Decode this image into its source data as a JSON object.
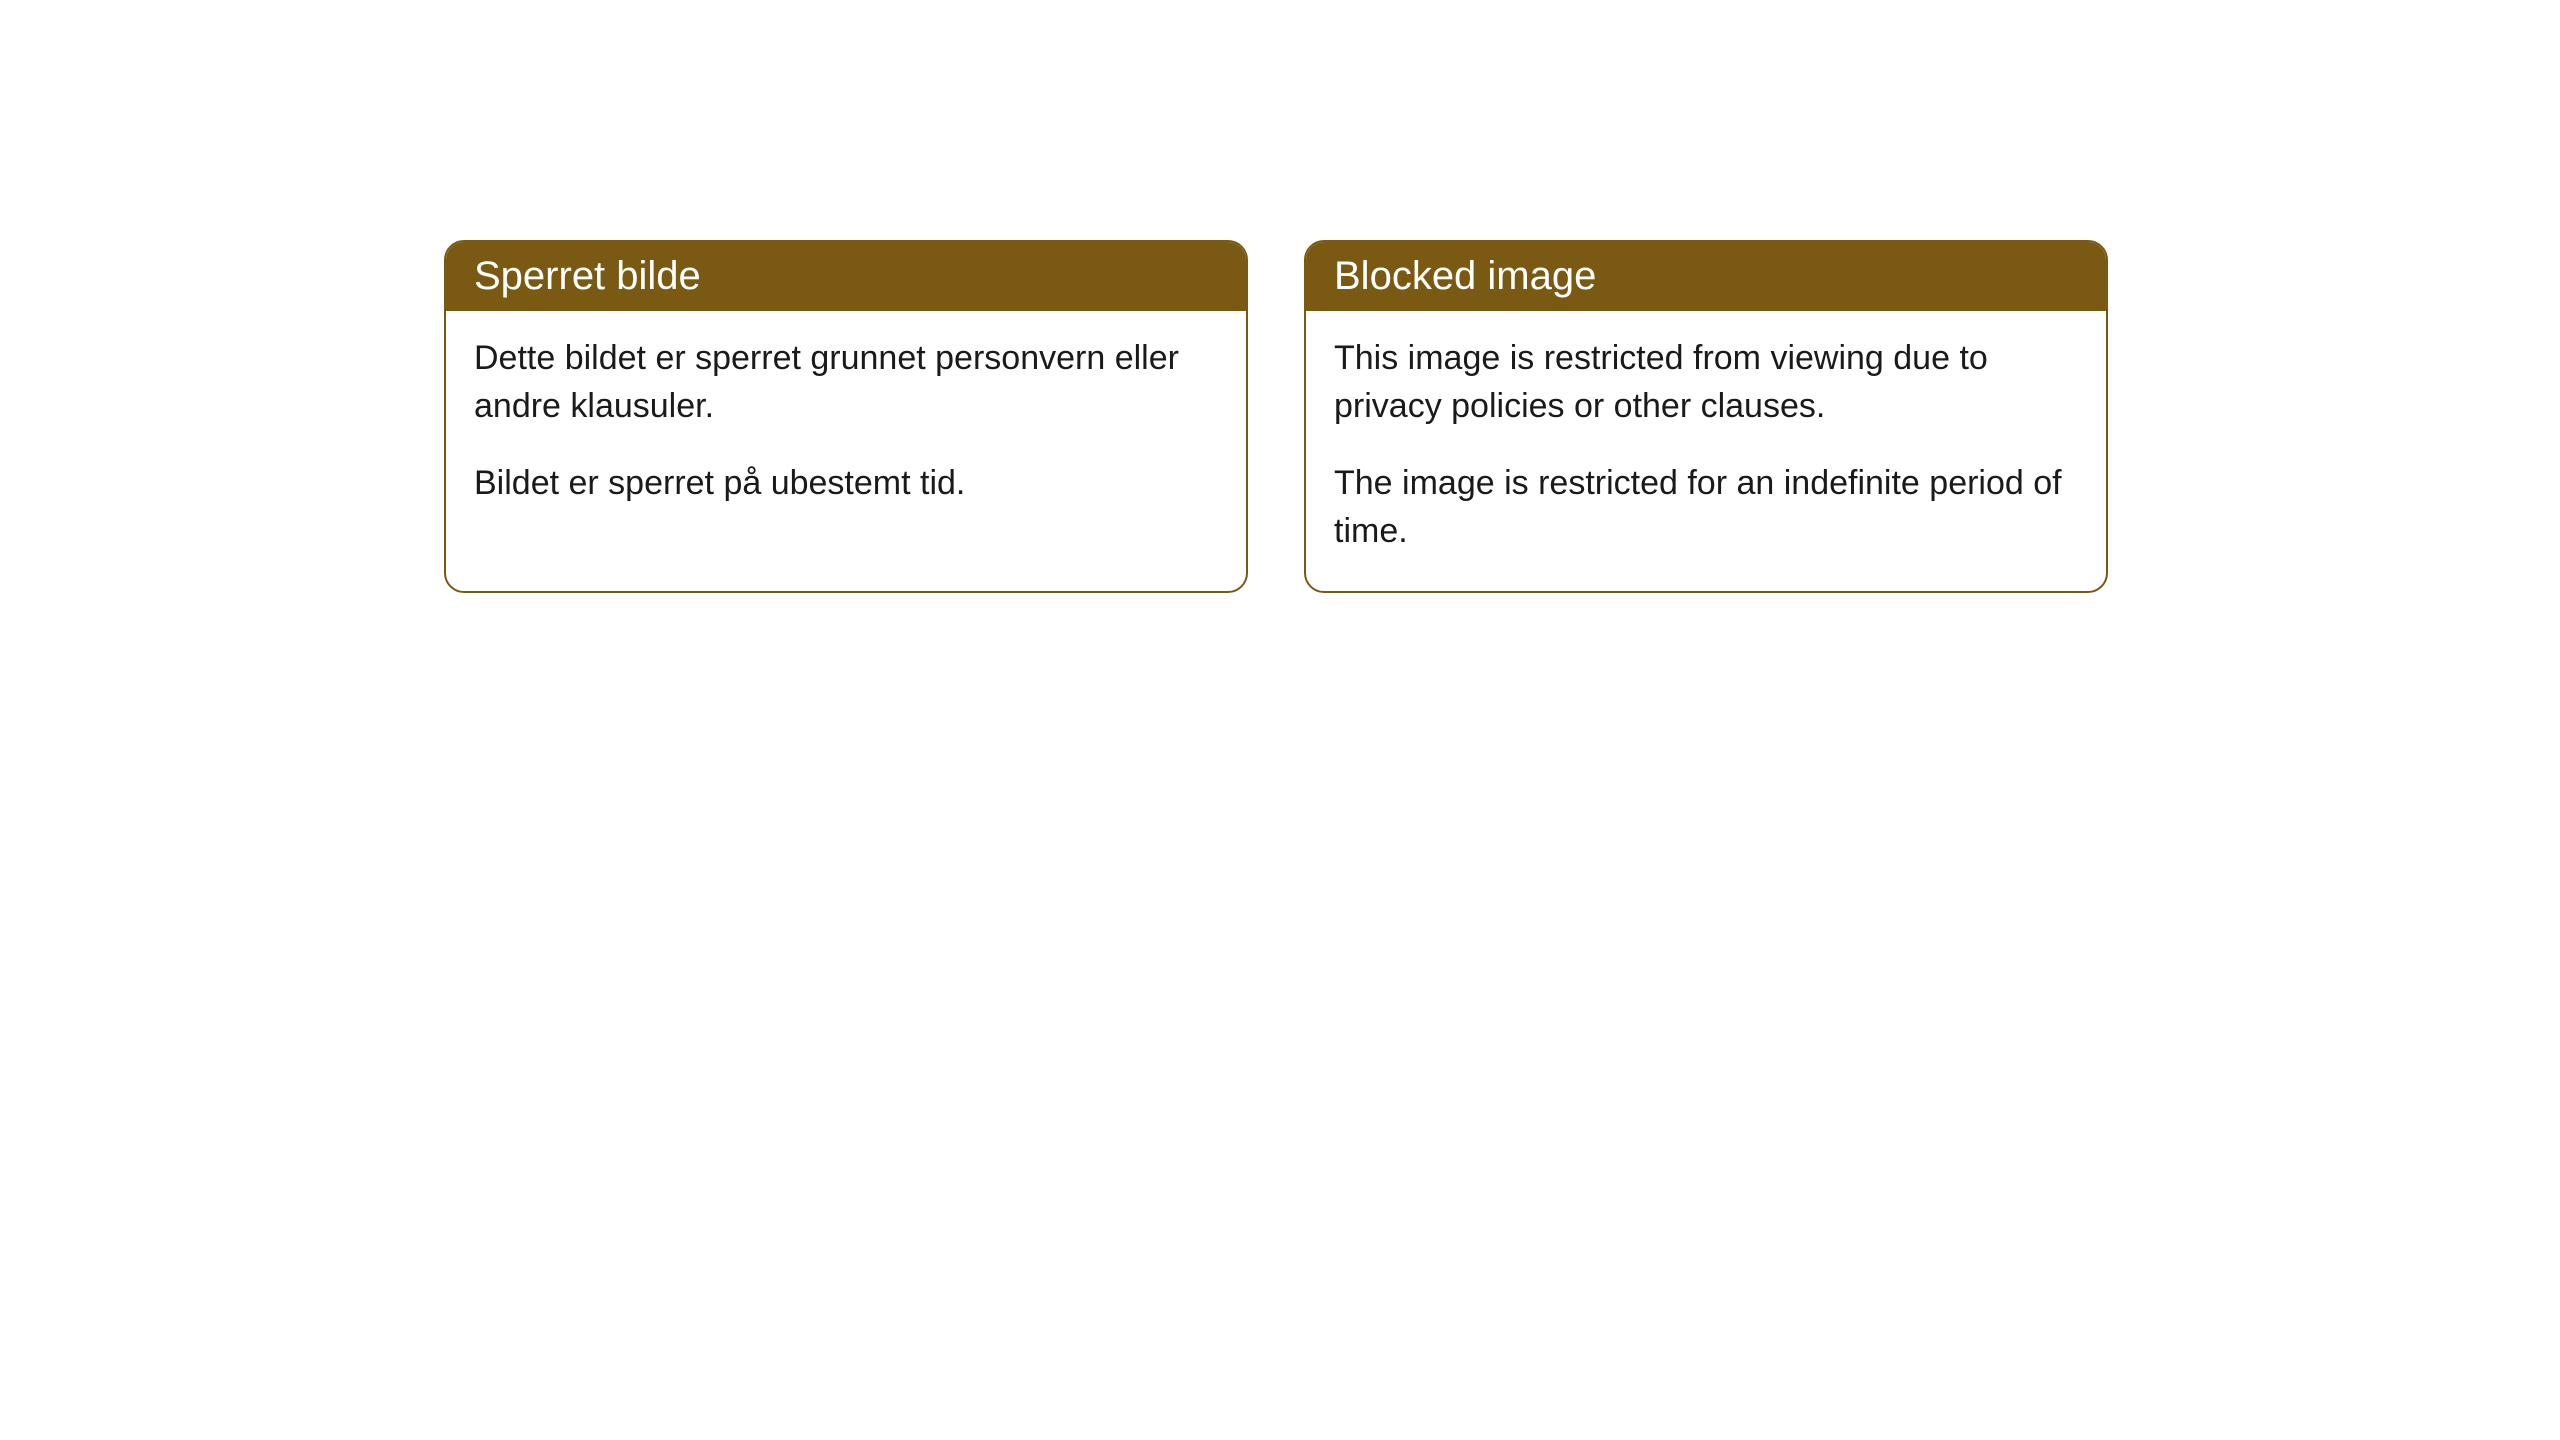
{
  "cards": [
    {
      "title": "Sperret bilde",
      "paragraph1": "Dette bildet er sperret grunnet personvern eller andre klausuler.",
      "paragraph2": "Bildet er sperret på ubestemt tid."
    },
    {
      "title": "Blocked image",
      "paragraph1": "This image is restricted from viewing due to privacy policies or other clauses.",
      "paragraph2": "The image is restricted for an indefinite period of time."
    }
  ],
  "styling": {
    "header_bg_color": "#7a5a12",
    "header_text_color": "#ffffff",
    "border_color": "#7a5a12",
    "body_bg_color": "#ffffff",
    "body_text_color": "#1a1a1a",
    "border_radius": 20,
    "title_fontsize": 40,
    "body_fontsize": 34
  }
}
